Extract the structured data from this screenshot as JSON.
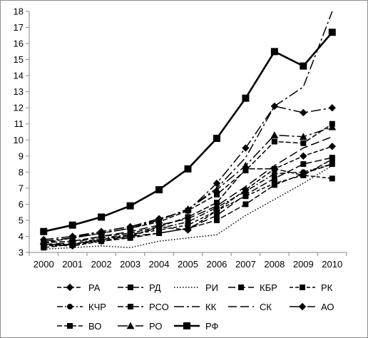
{
  "chart_data": {
    "type": "line",
    "title": "",
    "xlabel": "",
    "ylabel": "",
    "x": [
      "2000",
      "2001",
      "2002",
      "2003",
      "2004",
      "2005",
      "2006",
      "2007",
      "2008",
      "2009",
      "2010"
    ],
    "ylim": [
      3,
      18
    ],
    "yticks": [
      3,
      4,
      5,
      6,
      7,
      8,
      9,
      10,
      11,
      12,
      13,
      14,
      15,
      16,
      17,
      18
    ],
    "grid": false,
    "legend_position": "bottom",
    "series": [
      {
        "name": "РА",
        "values": [
          3.5,
          3.4,
          3.7,
          4.0,
          4.6,
          4.4,
          5.6,
          6.9,
          8.2,
          9.0,
          9.6
        ],
        "dash": "6,3",
        "marker": "diamond",
        "width": 1.5
      },
      {
        "name": "РД",
        "values": [
          3.3,
          3.5,
          3.7,
          3.9,
          4.2,
          4.5,
          5.0,
          6.0,
          7.2,
          7.9,
          8.5
        ],
        "dash": "8,3",
        "marker": "square",
        "width": 1.5
      },
      {
        "name": "РИ",
        "values": [
          3.2,
          3.3,
          3.4,
          3.3,
          3.7,
          3.9,
          4.1,
          5.3,
          6.3,
          7.3,
          8.4
        ],
        "dash": "1.5,2.5",
        "marker": "none",
        "width": 1.5
      },
      {
        "name": "КБР",
        "values": [
          3.5,
          3.5,
          3.8,
          4.0,
          4.2,
          4.5,
          5.3,
          6.6,
          7.6,
          8.5,
          8.9
        ],
        "dash": "10,4",
        "marker": "square",
        "width": 1.5
      },
      {
        "name": "РК",
        "values": [
          3.4,
          3.5,
          3.8,
          4.1,
          4.4,
          4.7,
          5.6,
          6.5,
          7.3,
          7.8,
          7.6
        ],
        "dash": "5,3",
        "marker": "square",
        "width": 1.5
      },
      {
        "name": "КЧР",
        "values": [
          3.5,
          3.5,
          3.9,
          4.1,
          4.5,
          4.9,
          5.8,
          6.8,
          7.9,
          8.0,
          8.5
        ],
        "dash": "8,3,2,3",
        "marker": "circle",
        "width": 1.5
      },
      {
        "name": "РСО",
        "values": [
          3.6,
          3.7,
          4.0,
          4.2,
          4.6,
          5.2,
          6.1,
          8.2,
          8.2,
          7.8,
          8.8
        ],
        "dash": "8,3",
        "marker": "square",
        "width": 1.5
      },
      {
        "name": "КК",
        "values": [
          3.7,
          3.9,
          4.2,
          4.5,
          5.0,
          5.7,
          7.0,
          8.9,
          12.1,
          13.3,
          18.0
        ],
        "dash": "14,4,3,4",
        "marker": "none",
        "width": 1.5
      },
      {
        "name": "СК",
        "values": [
          3.5,
          3.6,
          4.0,
          4.3,
          4.7,
          5.1,
          5.9,
          7.1,
          8.4,
          9.5,
          10.2
        ],
        "dash": "12,5",
        "marker": "none",
        "width": 1.5
      },
      {
        "name": "АО",
        "values": [
          3.8,
          4.0,
          4.3,
          4.6,
          5.1,
          5.6,
          7.3,
          9.5,
          12.1,
          11.7,
          12.0
        ],
        "dash": "14,4,3,4",
        "marker": "diamond",
        "width": 1.5
      },
      {
        "name": "ВО",
        "values": [
          3.6,
          3.9,
          4.2,
          4.5,
          4.9,
          5.6,
          6.6,
          8.1,
          9.9,
          9.8,
          11.0
        ],
        "dash": "7,3",
        "marker": "square",
        "width": 1.5
      },
      {
        "name": "РО",
        "values": [
          3.7,
          3.9,
          4.3,
          4.6,
          5.0,
          5.7,
          6.9,
          8.4,
          10.3,
          10.2,
          10.8
        ],
        "dash": "14,4,3,4",
        "marker": "triangle",
        "width": 1.5
      },
      {
        "name": "РФ",
        "values": [
          4.3,
          4.7,
          5.2,
          5.9,
          6.9,
          8.2,
          10.1,
          12.6,
          15.5,
          14.6,
          16.7
        ],
        "dash": "",
        "marker": "square",
        "width": 2.6
      }
    ]
  }
}
